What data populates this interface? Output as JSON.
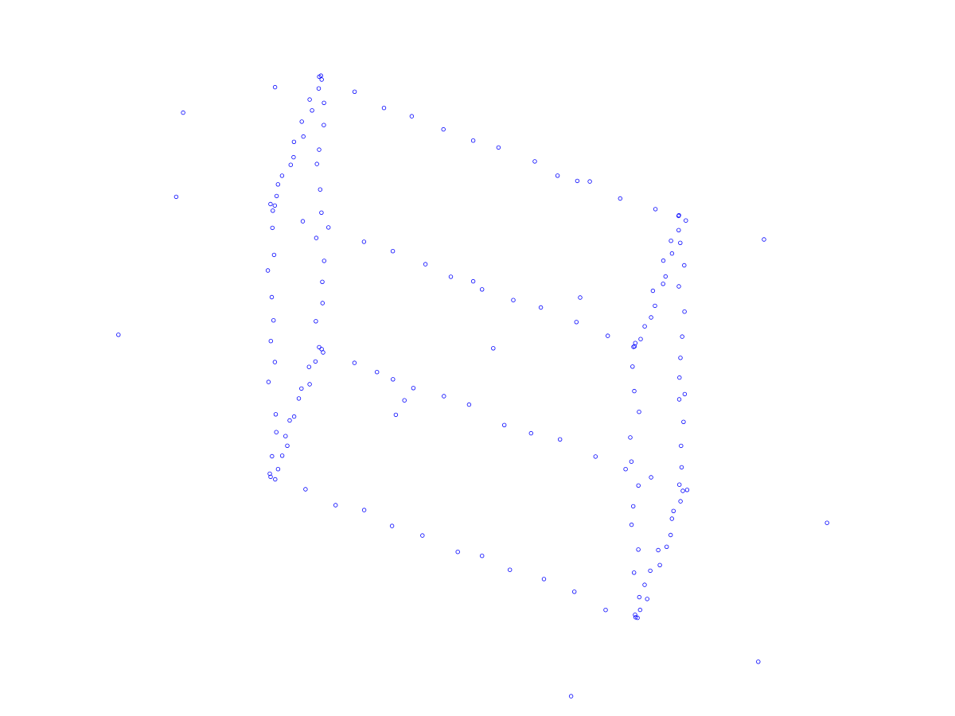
{
  "chart_data": {
    "type": "scatter",
    "marker": "circle-outline",
    "series": [
      {
        "color": "#0000ff",
        "wireframe": {
          "bounds": {
            "x": [
              -1,
              1
            ],
            "y": [
              -1,
              1
            ],
            "z": [
              -1,
              1
            ]
          },
          "points_per_edge": 13,
          "jitter": 0.025,
          "edges": [
            [
              [
                -1,
                -1,
                -1
              ],
              [
                1,
                -1,
                -1
              ]
            ],
            [
              [
                -1,
                1,
                -1
              ],
              [
                1,
                1,
                -1
              ]
            ],
            [
              [
                -1,
                -1,
                1
              ],
              [
                1,
                -1,
                1
              ]
            ],
            [
              [
                -1,
                1,
                1
              ],
              [
                1,
                1,
                1
              ]
            ],
            [
              [
                -1,
                -1,
                -1
              ],
              [
                -1,
                1,
                -1
              ]
            ],
            [
              [
                1,
                -1,
                -1
              ],
              [
                1,
                1,
                -1
              ]
            ],
            [
              [
                -1,
                -1,
                1
              ],
              [
                -1,
                1,
                1
              ]
            ],
            [
              [
                1,
                -1,
                1
              ],
              [
                1,
                1,
                1
              ]
            ],
            [
              [
                -1,
                -1,
                -1
              ],
              [
                -1,
                -1,
                1
              ]
            ],
            [
              [
                1,
                -1,
                -1
              ],
              [
                1,
                -1,
                1
              ]
            ],
            [
              [
                -1,
                1,
                -1
              ],
              [
                -1,
                1,
                1
              ]
            ],
            [
              [
                1,
                1,
                -1
              ],
              [
                1,
                1,
                1
              ]
            ]
          ]
        },
        "outliers": [
          [
            -1.55,
            0.55,
            1.2
          ],
          [
            1.5,
            -0.6,
            1.3
          ],
          [
            0.2,
            1.7,
            1.4
          ],
          [
            -1.7,
            -0.3,
            0.1
          ],
          [
            1.6,
            0.4,
            -1.3
          ],
          [
            -0.6,
            -1.5,
            -1.4
          ],
          [
            0.7,
            1.4,
            -1.55
          ],
          [
            1.3,
            1.2,
            0.9
          ],
          [
            -1.3,
            -1.4,
            0.6
          ],
          [
            0.1,
            0.1,
            0.1
          ],
          [
            -0.4,
            0.5,
            -0.2
          ],
          [
            0.5,
            -0.5,
            0.4
          ],
          [
            1.9,
            -0.2,
            -0.4
          ],
          [
            -1.9,
            0.6,
            -0.6
          ],
          [
            0.3,
            -1.9,
            0.5
          ],
          [
            -0.2,
            1.9,
            0.3
          ]
        ]
      }
    ]
  }
}
